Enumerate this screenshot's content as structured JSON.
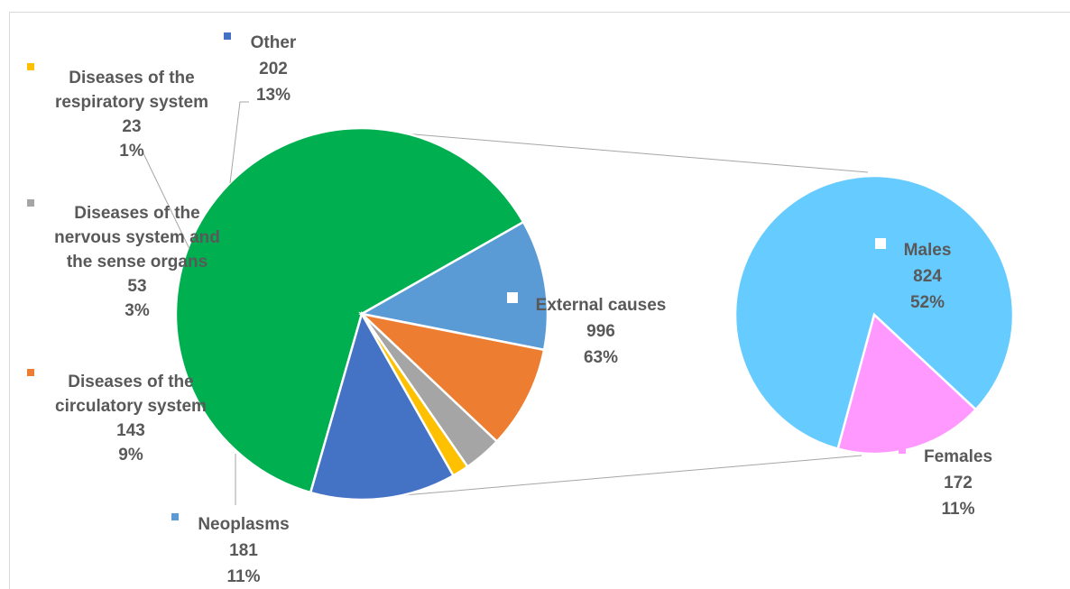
{
  "chart_data": {
    "type": "bar-of-pie",
    "main_pie": {
      "slices": [
        {
          "name": "External causes",
          "value": 996,
          "percent": "63%",
          "color": "#00b050"
        },
        {
          "name": "Neoplasms",
          "value": 181,
          "percent": "11%",
          "color": "#5b9bd5"
        },
        {
          "name": "Diseases of the circulatory system",
          "value": 143,
          "percent": "9%",
          "color": "#ed7d31"
        },
        {
          "name": "Diseases of the nervous system and the sense organs",
          "value": 53,
          "percent": "3%",
          "color": "#a5a5a5"
        },
        {
          "name": "Diseases of the respiratory system",
          "value": 23,
          "percent": "1%",
          "color": "#ffc000"
        },
        {
          "name": "Other",
          "value": 202,
          "percent": "13%",
          "color": "#4472c4"
        }
      ]
    },
    "secondary_pie": {
      "parent": "External causes",
      "slices": [
        {
          "name": "Males",
          "value": 824,
          "percent": "52%",
          "color": "#66ccff"
        },
        {
          "name": "Females",
          "value": 172,
          "percent": "11%",
          "color": "#ff99ff"
        }
      ]
    },
    "labels": {
      "other": {
        "lines": [
          "Other"
        ],
        "value": "202",
        "percent": "13%",
        "marker_color": "#4472c4"
      },
      "respiratory": {
        "lines": [
          "Diseases of the",
          "respiratory system"
        ],
        "value": "23",
        "percent": "1%",
        "marker_color": "#ffc000"
      },
      "nervous": {
        "lines": [
          "Diseases of the",
          "nervous system and",
          "the sense organs"
        ],
        "value": "53",
        "percent": "3%",
        "marker_color": "#a5a5a5"
      },
      "circulatory": {
        "lines": [
          "Diseases of the",
          "circulatory system"
        ],
        "value": "143",
        "percent": "9%",
        "marker_color": "#ed7d31"
      },
      "neoplasms": {
        "lines": [
          "Neoplasms"
        ],
        "value": "181",
        "percent": "11%",
        "marker_color": "#5b9bd5"
      },
      "external": {
        "lines": [
          "External causes"
        ],
        "value": "996",
        "percent": "63%",
        "marker_color": "#00b050"
      },
      "males": {
        "lines": [
          "Males"
        ],
        "value": "824",
        "percent": "52%",
        "marker_color": "#66ccff"
      },
      "females": {
        "lines": [
          "Females"
        ],
        "value": "172",
        "percent": "11%",
        "marker_color": "#ff99ff"
      }
    },
    "legend": "none",
    "grid": false
  }
}
